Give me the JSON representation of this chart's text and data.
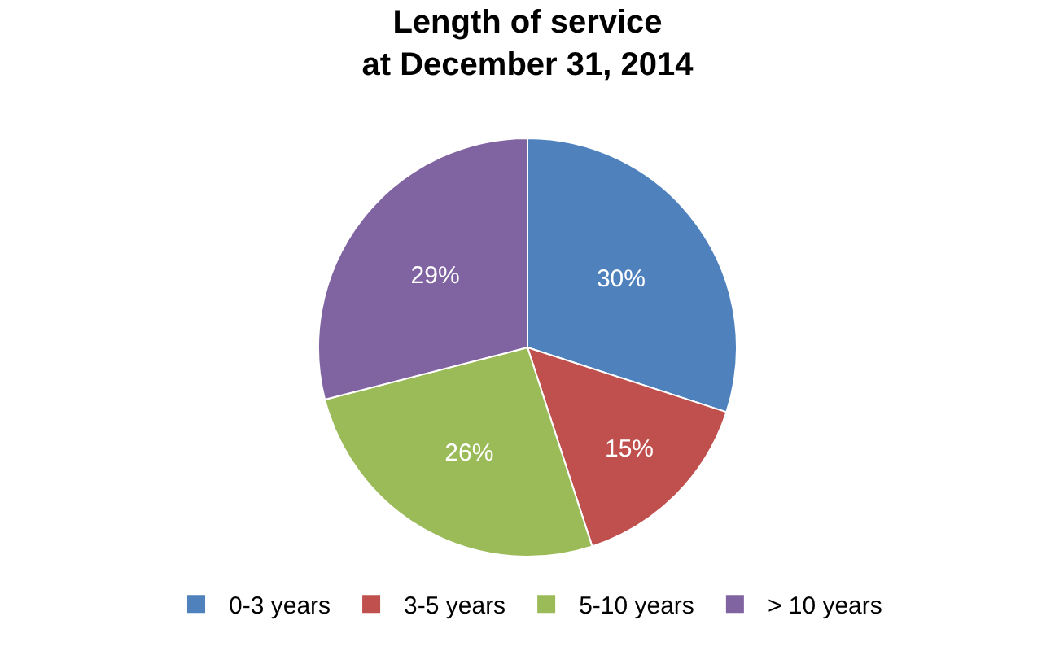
{
  "chart_data": {
    "type": "pie",
    "title": "Length of service\nat December 31, 2014",
    "categories": [
      "0-3 years",
      "3-5 years",
      "5-10 years",
      "> 10 years"
    ],
    "values": [
      30,
      15,
      26,
      29
    ],
    "colors": [
      "#4f81bd",
      "#c0504d",
      "#9bbb59",
      "#8064a2"
    ],
    "value_labels": [
      "30%",
      "15%",
      "26%",
      "29%"
    ],
    "legend": "bottom"
  }
}
